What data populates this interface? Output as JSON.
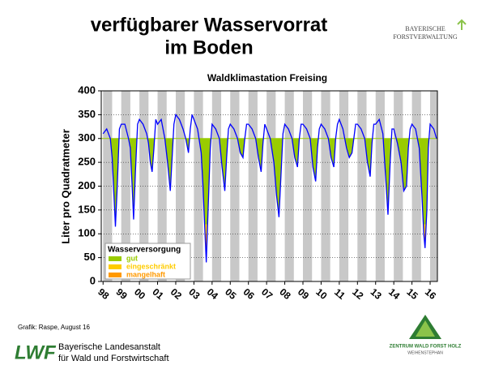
{
  "header": {
    "title_line1": "verfügbarer Wasservorrat",
    "title_line2": "im Boden",
    "logo_line1": "BAYERISCHE",
    "logo_line2": "FORSTVERWALTUNG"
  },
  "chart_data": {
    "type": "line",
    "title": "Waldklimastation Freising",
    "ylabel": "Liter pro Quadratmeter",
    "legend_title": "Wasserversorgung",
    "field_capacity": 300,
    "levels": [
      {
        "name": "gut",
        "color": "#99cc00",
        "min": 120
      },
      {
        "name": "eingeschränkt",
        "color": "#ffcc00",
        "min": 100
      },
      {
        "name": "mangelhaft",
        "color": "#ff9900",
        "min": 0
      }
    ],
    "series": [
      {
        "name": "Wasservorrat",
        "color": "#0000ff",
        "x": [
          1998.0,
          1998.2,
          1998.4,
          1998.5,
          1998.6,
          1998.68,
          1998.78,
          1998.9,
          1999.0,
          1999.2,
          1999.4,
          1999.5,
          1999.6,
          1999.68,
          1999.78,
          1999.9,
          2000.0,
          2000.2,
          2000.4,
          2000.5,
          2000.6,
          2000.7,
          2000.8,
          2000.9,
          2001.0,
          2001.2,
          2001.4,
          2001.55,
          2001.7,
          2001.8,
          2001.9,
          2002.0,
          2002.2,
          2002.4,
          2002.55,
          2002.7,
          2002.8,
          2002.9,
          2003.0,
          2003.2,
          2003.4,
          2003.5,
          2003.6,
          2003.68,
          2003.78,
          2003.9,
          2004.0,
          2004.2,
          2004.4,
          2004.55,
          2004.7,
          2004.8,
          2004.9,
          2005.0,
          2005.2,
          2005.4,
          2005.55,
          2005.7,
          2005.8,
          2005.9,
          2006.0,
          2006.2,
          2006.4,
          2006.55,
          2006.7,
          2006.8,
          2006.9,
          2007.0,
          2007.2,
          2007.4,
          2007.55,
          2007.68,
          2007.8,
          2007.9,
          2008.0,
          2008.2,
          2008.4,
          2008.55,
          2008.7,
          2008.8,
          2008.9,
          2009.0,
          2009.2,
          2009.4,
          2009.55,
          2009.7,
          2009.8,
          2009.9,
          2010.0,
          2010.2,
          2010.4,
          2010.55,
          2010.7,
          2010.8,
          2010.9,
          2011.0,
          2011.2,
          2011.4,
          2011.55,
          2011.7,
          2011.8,
          2011.9,
          2012.0,
          2012.2,
          2012.4,
          2012.55,
          2012.7,
          2012.8,
          2012.9,
          2013.0,
          2013.2,
          2013.4,
          2013.55,
          2013.68,
          2013.8,
          2013.9,
          2014.0,
          2014.2,
          2014.4,
          2014.55,
          2014.7,
          2014.8,
          2014.9,
          2015.0,
          2015.2,
          2015.4,
          2015.55,
          2015.65,
          2015.72,
          2015.82,
          2015.9,
          2016.0,
          2016.2,
          2016.35
        ],
        "values": [
          310,
          320,
          300,
          260,
          180,
          115,
          200,
          320,
          330,
          330,
          300,
          280,
          200,
          130,
          230,
          330,
          340,
          330,
          310,
          290,
          250,
          230,
          280,
          340,
          330,
          340,
          300,
          250,
          190,
          260,
          330,
          350,
          340,
          320,
          300,
          270,
          320,
          350,
          340,
          320,
          270,
          200,
          110,
          40,
          150,
          280,
          330,
          320,
          300,
          240,
          190,
          260,
          320,
          330,
          320,
          300,
          270,
          260,
          300,
          330,
          330,
          320,
          300,
          260,
          230,
          290,
          330,
          320,
          300,
          250,
          180,
          135,
          230,
          310,
          330,
          320,
          300,
          260,
          240,
          300,
          330,
          330,
          320,
          300,
          240,
          210,
          280,
          320,
          330,
          320,
          300,
          260,
          240,
          300,
          330,
          340,
          320,
          280,
          260,
          270,
          300,
          330,
          330,
          320,
          300,
          250,
          220,
          290,
          330,
          330,
          340,
          310,
          220,
          140,
          250,
          320,
          320,
          290,
          250,
          190,
          200,
          280,
          320,
          330,
          320,
          280,
          180,
          100,
          70,
          150,
          280,
          330,
          320,
          300
        ]
      }
    ],
    "xlim": [
      1997.9,
      2016.4
    ],
    "xticks": [
      {
        "value": 1998,
        "label": "98"
      },
      {
        "value": 1999,
        "label": "99"
      },
      {
        "value": 2000,
        "label": "00"
      },
      {
        "value": 2001,
        "label": "01"
      },
      {
        "value": 2002,
        "label": "02"
      },
      {
        "value": 2003,
        "label": "03"
      },
      {
        "value": 2004,
        "label": "04"
      },
      {
        "value": 2005,
        "label": "05"
      },
      {
        "value": 2006,
        "label": "06"
      },
      {
        "value": 2007,
        "label": "07"
      },
      {
        "value": 2008,
        "label": "08"
      },
      {
        "value": 2009,
        "label": "09"
      },
      {
        "value": 2010,
        "label": "10"
      },
      {
        "value": 2011,
        "label": "11"
      },
      {
        "value": 2012,
        "label": "12"
      },
      {
        "value": 2013,
        "label": "13"
      },
      {
        "value": 2014,
        "label": "14"
      },
      {
        "value": 2015,
        "label": "15"
      },
      {
        "value": 2016,
        "label": "16"
      }
    ],
    "ylim": [
      0,
      400
    ],
    "yticks": [
      0,
      50,
      100,
      150,
      200,
      250,
      300,
      350,
      400
    ],
    "grid": true
  },
  "footer": {
    "credit": "Grafik: Raspe, August 16",
    "lwf": "LWF",
    "inst_line1": "Bayerische Landesanstalt",
    "inst_line2": "für Wald und Forstwirtschaft",
    "zentrum_line1": "ZENTRUM WALD FORST HOLZ",
    "zentrum_line2": "WEIHENSTEPHAN"
  }
}
